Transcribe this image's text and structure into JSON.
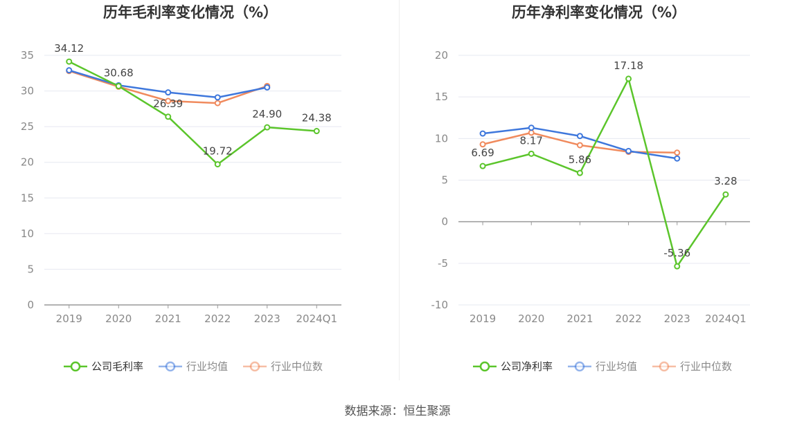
{
  "chart_data": [
    {
      "type": "line",
      "title": "历年毛利率变化情况（%）",
      "categories": [
        "2019",
        "2020",
        "2021",
        "2022",
        "2023",
        "2024Q1"
      ],
      "ylim": [
        0,
        35
      ],
      "yticks": [
        0,
        5,
        10,
        15,
        20,
        25,
        30,
        35
      ],
      "grid": true,
      "legend": "bottom",
      "series": [
        {
          "name": "公司毛利率",
          "color": "#5bc52b",
          "values": [
            34.12,
            30.68,
            26.39,
            19.72,
            24.9,
            24.38
          ],
          "labels": [
            "34.12",
            "30.68",
            "26.39",
            "19.72",
            "24.90",
            "24.38"
          ]
        },
        {
          "name": "行业均值",
          "color": "#3e77dc",
          "values": [
            32.9,
            30.8,
            29.8,
            29.1,
            30.5,
            null
          ]
        },
        {
          "name": "行业中位数",
          "color": "#f08a5d",
          "values": [
            32.8,
            30.6,
            28.6,
            28.3,
            30.7,
            null
          ]
        }
      ]
    },
    {
      "type": "line",
      "title": "历年净利率变化情况（%）",
      "categories": [
        "2019",
        "2020",
        "2021",
        "2022",
        "2023",
        "2024Q1"
      ],
      "ylim": [
        -10,
        20
      ],
      "yticks": [
        -10,
        -5,
        0,
        5,
        10,
        15,
        20
      ],
      "grid": true,
      "legend": "bottom",
      "series": [
        {
          "name": "公司净利率",
          "color": "#5bc52b",
          "values": [
            6.69,
            8.17,
            5.86,
            17.18,
            -5.36,
            3.28
          ],
          "labels": [
            "6.69",
            "8.17",
            "5.86",
            "17.18",
            "-5.36",
            "3.28"
          ]
        },
        {
          "name": "行业均值",
          "color": "#3e77dc",
          "values": [
            10.6,
            11.3,
            10.3,
            8.5,
            7.6,
            null
          ]
        },
        {
          "name": "行业中位数",
          "color": "#f08a5d",
          "values": [
            9.3,
            10.7,
            9.2,
            8.4,
            8.3,
            null
          ]
        }
      ]
    }
  ],
  "source": "数据来源：恒生聚源"
}
